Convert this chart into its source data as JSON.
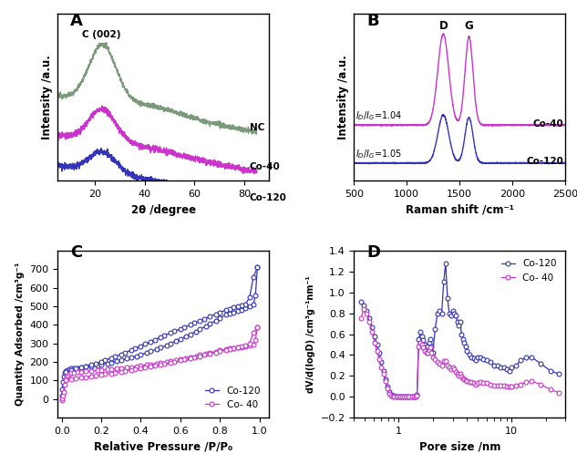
{
  "colors": {
    "NC": "#7a9a7a",
    "Co40": "#cc33cc",
    "Co120": "#3333bb"
  },
  "panel_A": {
    "label": "A",
    "xlabel": "2θ /degree",
    "ylabel": "Intensity /a.u.",
    "xlim": [
      5,
      85
    ]
  },
  "panel_B": {
    "label": "B",
    "xlabel": "Raman shift /cm⁻¹",
    "ylabel": "Intensity /a.u.",
    "xlim": [
      500,
      2500
    ]
  },
  "panel_C": {
    "label": "C",
    "xlabel": "Relative Pressure /P/P₀",
    "ylabel": "Quantity Adsorbed /cm³g⁻¹",
    "xlim": [
      -0.02,
      1.05
    ],
    "ylim": [
      -100,
      800
    ]
  },
  "panel_D": {
    "label": "D",
    "xlabel": "Pore size /nm",
    "ylabel": "dV/d(logD) /cm³g⁻¹nm⁻¹",
    "ylim": [
      -0.2,
      1.4
    ]
  }
}
